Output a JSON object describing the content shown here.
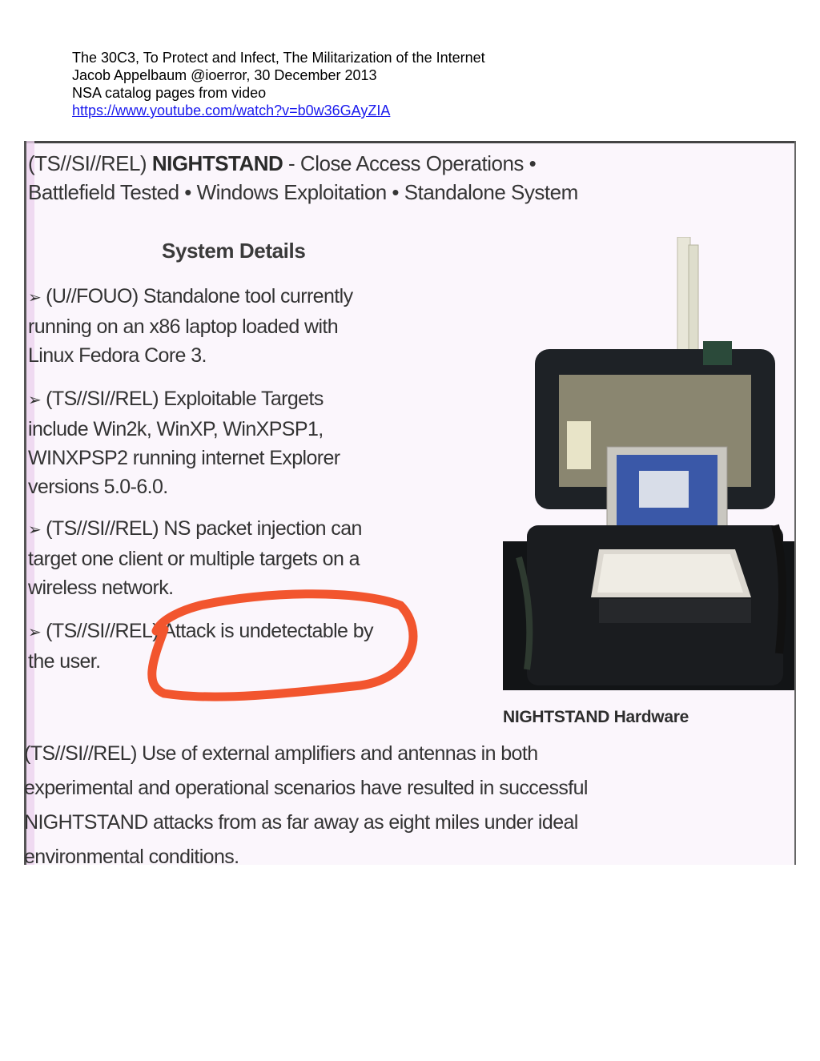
{
  "header": {
    "line1": "The 30C3, To Protect and Infect, The Militarization of the Internet",
    "line2": "Jacob Appelbaum @ioerror, 30 December 2013",
    "line3": "NSA catalog pages from video",
    "link": "https://www.youtube.com/watch?v=b0w36GAyZIA"
  },
  "slide": {
    "title_prefix": "(TS//SI//REL) ",
    "title_name": "NIGHTSTAND",
    "title_rest1": " - Close Access Operations •",
    "title_line2": "Battlefield Tested  •  Windows Exploitation  • Standalone System",
    "details_heading": "System Details",
    "bullets": [
      [
        "(U//FOUO) Standalone tool currently",
        "running on an x86 laptop loaded with",
        "Linux Fedora Core 3."
      ],
      [
        "(TS//SI//REL) Exploitable Targets",
        "include Win2k, WinXP, WinXPSP1,",
        "WINXPSP2 running internet Explorer",
        "versions 5.0-6.0."
      ],
      [
        "(TS//SI//REL) NS packet injection can",
        "target one client or multiple targets on a",
        "wireless network."
      ],
      [
        "(TS//SI//REL) Attack is undetectable by",
        "the user."
      ]
    ],
    "bullet_arrow": "➢",
    "photo_caption": "NIGHTSTAND Hardware",
    "footer": [
      "(TS//SI//REL) Use of external amplifiers and antennas in both",
      "experimental and operational scenarios have resulted in successful",
      "NIGHTSTAND attacks from as far away as eight miles under ideal",
      "environmental conditions."
    ],
    "annotation_color": "#f2552e"
  }
}
